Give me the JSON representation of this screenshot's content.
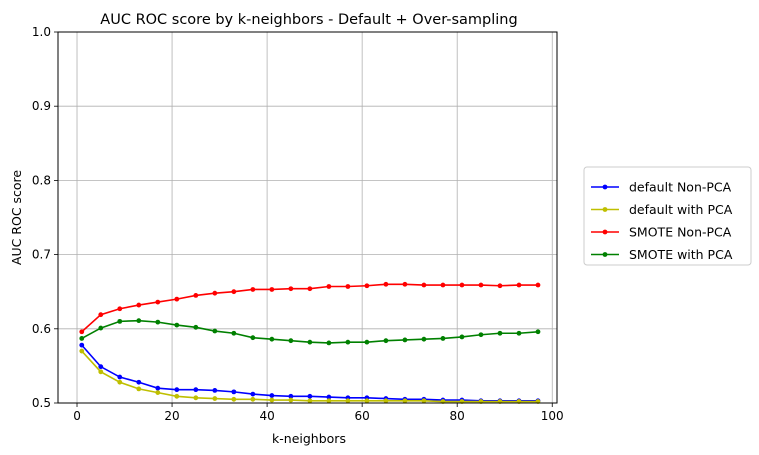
{
  "chart_data": {
    "type": "line",
    "title": "AUC ROC score by k-neighbors - Default + Over-sampling",
    "xlabel": "k-neighbors",
    "ylabel": "AUC ROC score",
    "xlim": [
      -4,
      101
    ],
    "ylim": [
      0.5,
      1.0
    ],
    "xticks": [
      0,
      20,
      40,
      60,
      80,
      100
    ],
    "yticks": [
      0.5,
      0.6,
      0.7,
      0.8,
      0.9,
      1.0
    ],
    "grid": true,
    "legend_position": "right",
    "x": [
      1,
      5,
      9,
      13,
      17,
      21,
      25,
      29,
      33,
      37,
      41,
      45,
      49,
      53,
      57,
      61,
      65,
      69,
      73,
      77,
      81,
      85,
      89,
      93,
      97
    ],
    "series": [
      {
        "name": "default Non-PCA",
        "color": "#0000ff",
        "values": [
          0.578,
          0.549,
          0.535,
          0.528,
          0.52,
          0.518,
          0.518,
          0.517,
          0.515,
          0.512,
          0.51,
          0.509,
          0.509,
          0.508,
          0.507,
          0.507,
          0.506,
          0.505,
          0.505,
          0.504,
          0.504,
          0.503,
          0.503,
          0.503,
          0.503
        ]
      },
      {
        "name": "default with PCA",
        "color": "#bfbf00",
        "values": [
          0.57,
          0.542,
          0.528,
          0.519,
          0.514,
          0.509,
          0.507,
          0.506,
          0.505,
          0.505,
          0.504,
          0.504,
          0.503,
          0.503,
          0.503,
          0.503,
          0.503,
          0.503,
          0.503,
          0.502,
          0.502,
          0.502,
          0.502,
          0.502,
          0.502
        ]
      },
      {
        "name": "SMOTE Non-PCA",
        "color": "#ff0000",
        "values": [
          0.596,
          0.619,
          0.627,
          0.632,
          0.636,
          0.64,
          0.645,
          0.648,
          0.65,
          0.653,
          0.653,
          0.654,
          0.654,
          0.657,
          0.657,
          0.658,
          0.66,
          0.66,
          0.659,
          0.659,
          0.659,
          0.659,
          0.658,
          0.659,
          0.659
        ]
      },
      {
        "name": "SMOTE with PCA",
        "color": "#008000",
        "values": [
          0.587,
          0.601,
          0.61,
          0.611,
          0.609,
          0.605,
          0.602,
          0.597,
          0.594,
          0.588,
          0.586,
          0.584,
          0.582,
          0.581,
          0.582,
          0.582,
          0.584,
          0.585,
          0.586,
          0.587,
          0.589,
          0.592,
          0.594,
          0.594,
          0.596
        ]
      }
    ]
  }
}
